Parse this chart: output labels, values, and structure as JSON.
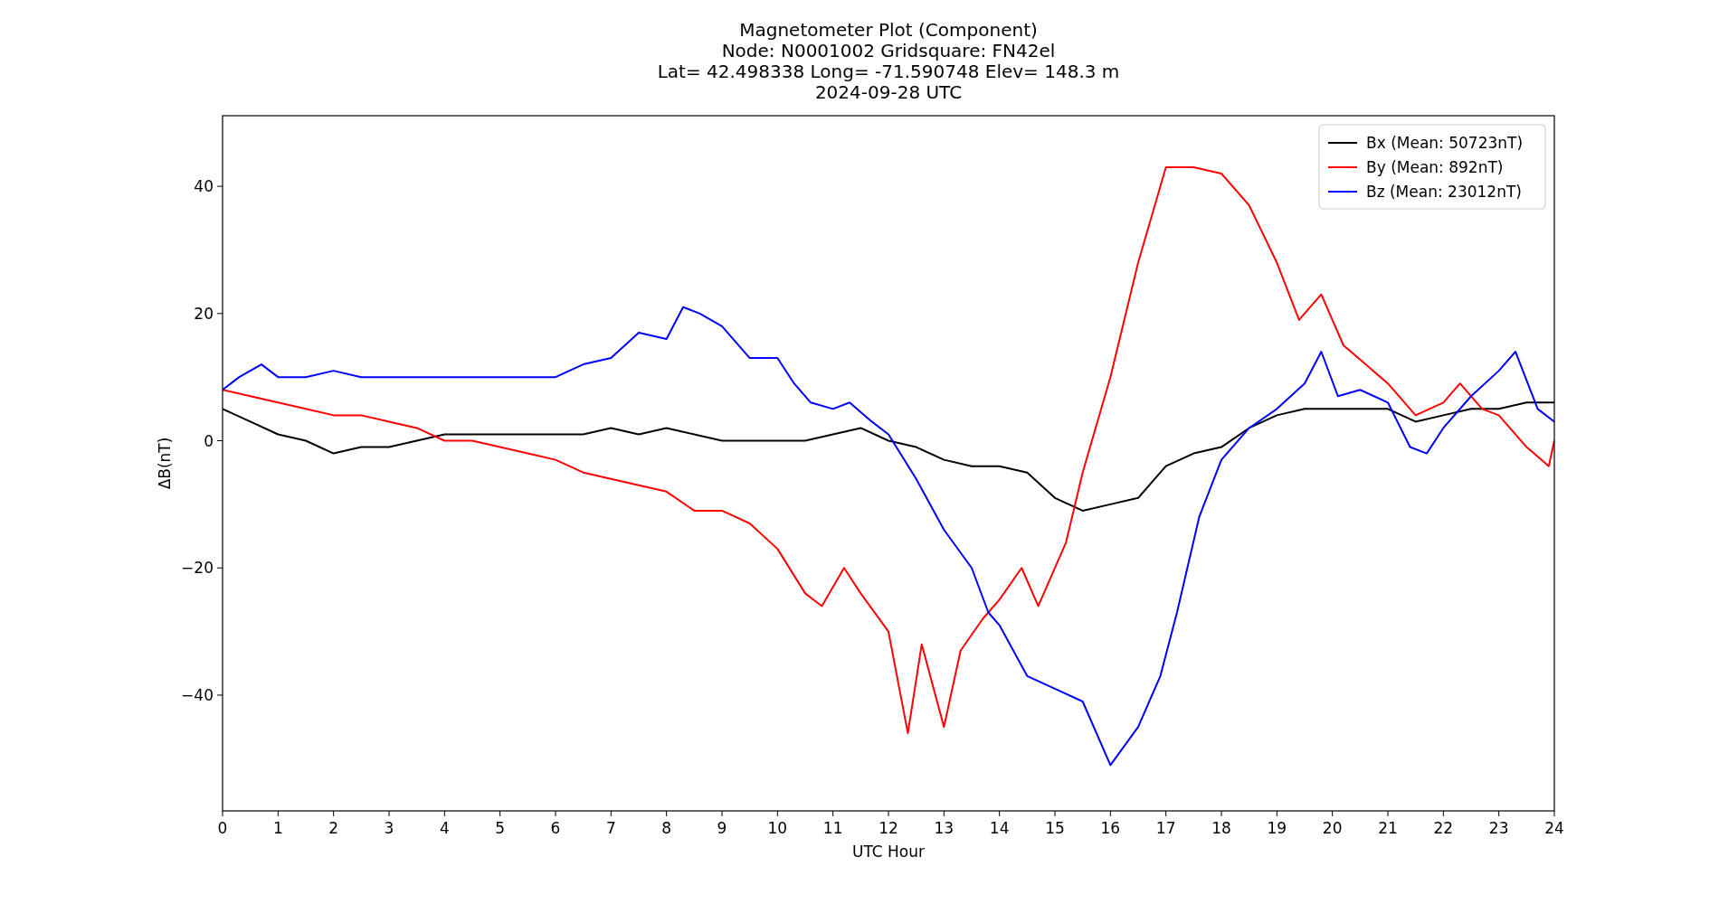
{
  "chart_data": {
    "type": "line",
    "title": "Magnetometer Plot (Component)\nNode:  N0001002     Gridsquare:  FN42el\nLat= 42.498338    Long= -71.590748    Elev= 148.3 m\n2024-09-28  UTC",
    "xlabel": "UTC Hour",
    "ylabel": "ΔB(nT)",
    "xlim": [
      0,
      24
    ],
    "xticks": [
      0,
      1,
      2,
      3,
      4,
      5,
      6,
      7,
      8,
      9,
      10,
      11,
      12,
      13,
      14,
      15,
      16,
      17,
      18,
      19,
      20,
      21,
      22,
      23,
      24
    ],
    "ylim": [
      -58.2,
      51.1
    ],
    "yticks": [
      {
        "value": -40,
        "label": "−40"
      },
      {
        "value": -20,
        "label": "−20"
      },
      0,
      20,
      40
    ],
    "legend": "top right",
    "grid": false,
    "series": [
      {
        "name": "Bx (Mean: 50723nT)",
        "color": "#000000",
        "x": [
          0,
          0.5,
          1,
          1.5,
          2,
          2.5,
          3,
          3.5,
          4,
          4.5,
          5,
          5.5,
          6,
          6.5,
          7,
          7.5,
          8,
          8.5,
          9,
          9.5,
          10,
          10.5,
          11,
          11.5,
          12,
          12.5,
          13,
          13.5,
          14,
          14.5,
          15,
          15.5,
          16,
          16.5,
          17,
          17.5,
          18,
          18.5,
          19,
          19.5,
          20,
          20.5,
          21,
          21.5,
          22,
          22.5,
          23,
          23.5,
          24
        ],
        "values": [
          5,
          3,
          1,
          0,
          -2,
          -1,
          -1,
          0,
          1,
          1,
          1,
          1,
          1,
          1,
          2,
          1,
          2,
          1,
          0,
          0,
          0,
          0,
          1,
          2,
          0,
          -1,
          -3,
          -4,
          -4,
          -5,
          -9,
          -11,
          -10,
          -9,
          -4,
          -2,
          -1,
          2,
          4,
          5,
          5,
          5,
          5,
          3,
          4,
          5,
          5,
          6,
          6
        ]
      },
      {
        "name": "By (Mean: 892nT)",
        "color": "#ff0000",
        "x": [
          0,
          0.5,
          1,
          1.5,
          2,
          2.5,
          3,
          3.5,
          4,
          4.5,
          5,
          5.5,
          6,
          6.5,
          7,
          7.5,
          8,
          8.5,
          9,
          9.5,
          10,
          10.5,
          10.8,
          11.2,
          11.5,
          12,
          12.35,
          12.6,
          13,
          13.3,
          13.7,
          14,
          14.4,
          14.7,
          15.2,
          15.5,
          16,
          16.5,
          17,
          17.5,
          18,
          18.5,
          19,
          19.4,
          19.8,
          20.2,
          20.6,
          21,
          21.5,
          22,
          22.3,
          22.7,
          23,
          23.5,
          23.9,
          24
        ],
        "values": [
          8,
          7,
          6,
          5,
          4,
          4,
          3,
          2,
          0,
          0,
          -1,
          -2,
          -3,
          -5,
          -6,
          -7,
          -8,
          -11,
          -11,
          -13,
          -17,
          -24,
          -26,
          -20,
          -24,
          -30,
          -46,
          -32,
          -45,
          -33,
          -28,
          -25,
          -20,
          -26,
          -16,
          -5,
          10,
          28,
          43,
          43,
          42,
          37,
          28,
          19,
          23,
          15,
          12,
          9,
          4,
          6,
          9,
          5,
          4,
          -1,
          -4,
          0
        ]
      },
      {
        "name": "Bz (Mean: 23012nT)",
        "color": "#0000ff",
        "x": [
          0,
          0.3,
          0.7,
          1,
          1.5,
          2,
          2.5,
          3,
          3.5,
          4,
          4.5,
          5,
          5.5,
          6,
          6.5,
          7,
          7.5,
          8,
          8.3,
          8.6,
          9,
          9.5,
          10,
          10.3,
          10.6,
          11,
          11.3,
          11.7,
          12,
          12.5,
          13,
          13.5,
          13.8,
          14,
          14.5,
          15,
          15.5,
          16,
          16.5,
          16.9,
          17.2,
          17.6,
          18,
          18.5,
          19,
          19.5,
          19.8,
          20.1,
          20.5,
          21,
          21.4,
          21.7,
          22,
          22.5,
          23,
          23.3,
          23.7,
          24
        ],
        "values": [
          8,
          10,
          12,
          10,
          10,
          11,
          10,
          10,
          10,
          10,
          10,
          10,
          10,
          10,
          12,
          13,
          17,
          16,
          21,
          20,
          18,
          13,
          13,
          9,
          6,
          5,
          6,
          3,
          1,
          -6,
          -14,
          -20,
          -27,
          -29,
          -37,
          -39,
          -41,
          -51,
          -45,
          -37,
          -27,
          -12,
          -3,
          2,
          5,
          9,
          14,
          7,
          8,
          6,
          -1,
          -2,
          2,
          7,
          11,
          14,
          5,
          3
        ]
      }
    ]
  }
}
